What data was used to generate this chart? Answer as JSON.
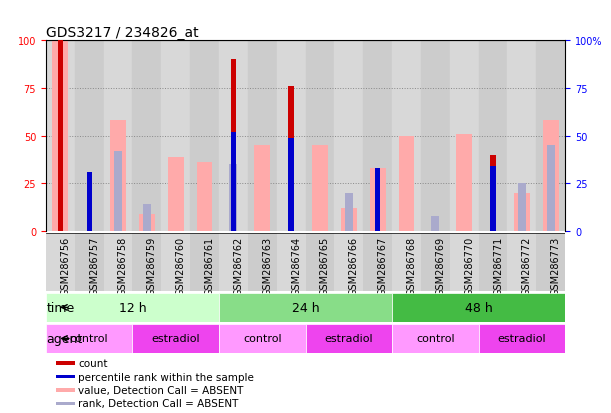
{
  "title": "GDS3217 / 234826_at",
  "samples": [
    "GSM286756",
    "GSM286757",
    "GSM286758",
    "GSM286759",
    "GSM286760",
    "GSM286761",
    "GSM286762",
    "GSM286763",
    "GSM286764",
    "GSM286765",
    "GSM286766",
    "GSM286767",
    "GSM286768",
    "GSM286769",
    "GSM286770",
    "GSM286771",
    "GSM286772",
    "GSM286773"
  ],
  "count_values": [
    100,
    0,
    0,
    0,
    0,
    0,
    90,
    0,
    76,
    0,
    0,
    0,
    0,
    0,
    0,
    40,
    0,
    0
  ],
  "rank_values": [
    0,
    31,
    0,
    0,
    0,
    0,
    52,
    0,
    49,
    0,
    0,
    33,
    0,
    0,
    0,
    34,
    0,
    0
  ],
  "value_absent": [
    100,
    0,
    58,
    9,
    39,
    36,
    0,
    45,
    0,
    45,
    12,
    33,
    50,
    0,
    51,
    0,
    20,
    58
  ],
  "rank_absent": [
    0,
    0,
    42,
    14,
    0,
    0,
    35,
    0,
    0,
    0,
    20,
    0,
    0,
    8,
    0,
    0,
    25,
    45
  ],
  "time_groups": [
    {
      "label": "12 h",
      "start": 0,
      "end": 6
    },
    {
      "label": "24 h",
      "start": 6,
      "end": 12
    },
    {
      "label": "48 h",
      "start": 12,
      "end": 18
    }
  ],
  "time_colors": [
    "#ccffcc",
    "#88dd88",
    "#44bb44"
  ],
  "agent_groups": [
    {
      "label": "control",
      "start": 0,
      "end": 3
    },
    {
      "label": "estradiol",
      "start": 3,
      "end": 6
    },
    {
      "label": "control",
      "start": 6,
      "end": 9
    },
    {
      "label": "estradiol",
      "start": 9,
      "end": 12
    },
    {
      "label": "control",
      "start": 12,
      "end": 15
    },
    {
      "label": "estradiol",
      "start": 15,
      "end": 18
    }
  ],
  "agent_color_control": "#ff99ff",
  "agent_color_estradiol": "#ee44ee",
  "ylim": [
    0,
    100
  ],
  "grid_yticks": [
    0,
    25,
    50,
    75,
    100
  ],
  "color_count": "#cc0000",
  "color_rank": "#0000cc",
  "color_value_absent": "#ffaaaa",
  "color_rank_absent": "#aaaacc",
  "bg_col_even": "#d8d8d8",
  "bg_col_odd": "#cccccc",
  "title_fontsize": 10,
  "tick_fontsize": 7,
  "label_fontsize": 9,
  "legend_fontsize": 7.5
}
